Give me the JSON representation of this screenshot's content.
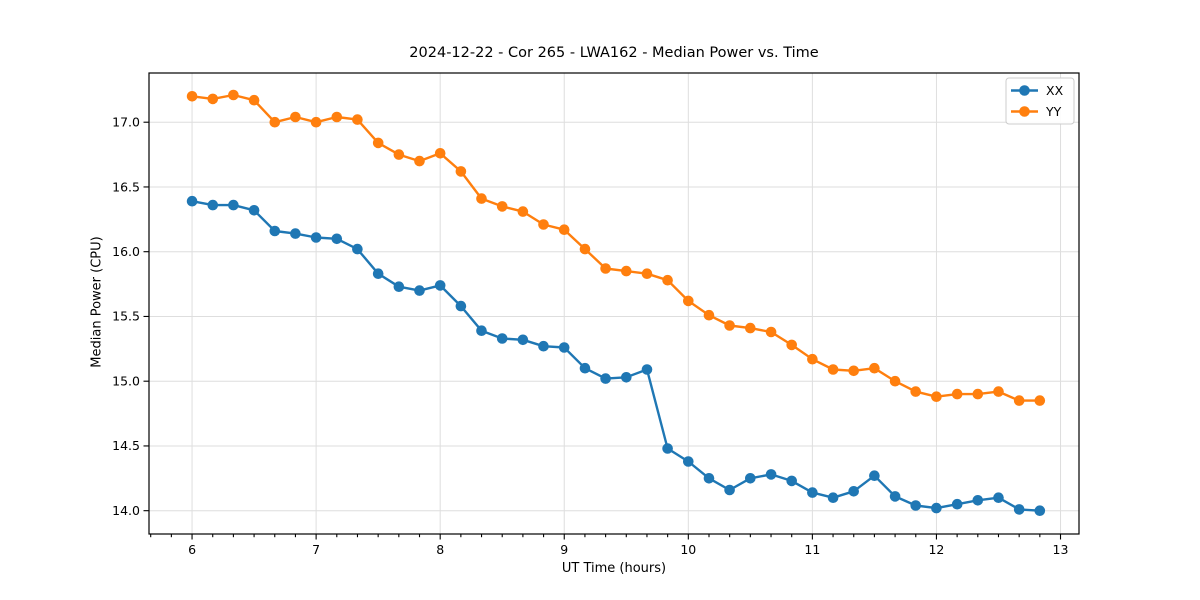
{
  "figure": {
    "background": "#ffffff",
    "text_color": "#000000"
  },
  "chart_data": {
    "type": "line",
    "title": "2024-12-22 - Cor 265 - LWA162 - Median Power vs. Time",
    "xlabel": "UT Time (hours)",
    "ylabel": "Median Power (CPU)",
    "xlim": [
      5.653,
      13.149
    ],
    "ylim": [
      13.82,
      17.38
    ],
    "grid": "major",
    "grid_color": "#dedede",
    "spine_color": "#000000",
    "legend_position": "upper right",
    "x_major_ticks": [
      6,
      7,
      8,
      9,
      10,
      11,
      12,
      13
    ],
    "x_tick_labels": [
      "6",
      "7",
      "8",
      "9",
      "10",
      "11",
      "12",
      "13"
    ],
    "x_minor_tick_step": 0.16667,
    "y_major_ticks": [
      14.0,
      14.5,
      15.0,
      15.5,
      16.0,
      16.5,
      17.0
    ],
    "y_tick_labels": [
      "14.0",
      "14.5",
      "15.0",
      "15.5",
      "16.0",
      "16.5",
      "17.0"
    ],
    "x": [
      6,
      6.167,
      6.333,
      6.5,
      6.667,
      6.833,
      7,
      7.167,
      7.333,
      7.5,
      7.667,
      7.833,
      8,
      8.167,
      8.333,
      8.5,
      8.667,
      8.833,
      9,
      9.167,
      9.333,
      9.5,
      9.667,
      9.833,
      10,
      10.167,
      10.333,
      10.5,
      10.667,
      10.833,
      11,
      11.167,
      11.333,
      11.5,
      11.667,
      11.833,
      12,
      12.167,
      12.333,
      12.5,
      12.667,
      12.833
    ],
    "series": [
      {
        "name": "XX",
        "color": "#1f77b4",
        "values": [
          16.39,
          16.36,
          16.36,
          16.32,
          16.16,
          16.14,
          16.11,
          16.1,
          16.02,
          15.83,
          15.73,
          15.7,
          15.74,
          15.58,
          15.39,
          15.33,
          15.32,
          15.27,
          15.26,
          15.1,
          15.02,
          15.03,
          15.09,
          14.48,
          14.38,
          14.25,
          14.16,
          14.25,
          14.28,
          14.23,
          14.14,
          14.1,
          14.15,
          14.27,
          14.11,
          14.04,
          14.02,
          14.05,
          14.08,
          14.1,
          14.01,
          14.0
        ]
      },
      {
        "name": "YY",
        "color": "#ff7f0e",
        "values": [
          17.2,
          17.18,
          17.21,
          17.17,
          17.0,
          17.04,
          17.0,
          17.04,
          17.02,
          16.84,
          16.75,
          16.7,
          16.76,
          16.62,
          16.41,
          16.35,
          16.31,
          16.21,
          16.17,
          16.02,
          15.87,
          15.85,
          15.83,
          15.78,
          15.62,
          15.51,
          15.43,
          15.41,
          15.38,
          15.28,
          15.17,
          15.09,
          15.08,
          15.1,
          15.0,
          14.92,
          14.88,
          14.9,
          14.9,
          14.92,
          14.85,
          14.85
        ]
      }
    ]
  }
}
